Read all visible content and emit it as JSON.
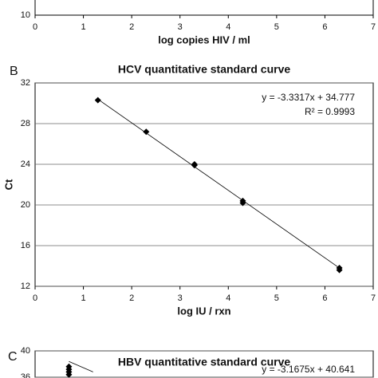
{
  "chart_data": [
    {
      "type": "scatter",
      "panel": null,
      "x_label": "log copies HIV / ml",
      "xlim": [
        0,
        7
      ],
      "xticks": [
        0,
        1,
        2,
        3,
        4,
        5,
        6,
        7
      ],
      "yticks": [
        10
      ]
    },
    {
      "type": "scatter",
      "panel": "B",
      "title": "HCV quantitative standard curve",
      "x_label": "log IU / rxn",
      "y_label": "Ct",
      "equation": "y = -3.3317x + 34.777",
      "r_squared": "R² = 0.9993",
      "xlim": [
        0,
        7
      ],
      "xticks": [
        0,
        1,
        2,
        3,
        4,
        5,
        6,
        7
      ],
      "ylim": [
        12,
        32
      ],
      "yticks": [
        12,
        16,
        20,
        24,
        28,
        32
      ],
      "grid": true,
      "series": [
        {
          "color": "#000000",
          "x": [
            1.3,
            2.3,
            3.3,
            3.3,
            4.3,
            4.3,
            6.3,
            6.3
          ],
          "values": [
            30.3,
            27.2,
            24.0,
            23.9,
            20.4,
            20.2,
            13.8,
            13.6
          ]
        },
        {
          "color": "#000000",
          "line": true,
          "x": [
            1.3,
            6.3
          ],
          "values": [
            30.4,
            13.8
          ]
        }
      ]
    },
    {
      "type": "scatter",
      "panel": "C",
      "title": "HBV quantitative standard curve",
      "equation": "y = -3.1675x + 40.641",
      "xlim": [
        0,
        7
      ],
      "ylim": [
        36,
        40
      ],
      "yticks": [
        40,
        36
      ],
      "grid": true,
      "series": [
        {
          "color": "#000000",
          "x": [
            0.7,
            0.7,
            0.7,
            0.7
          ],
          "values": [
            37.6,
            37.2,
            36.8,
            36.4
          ]
        },
        {
          "color": "#000000",
          "line": true,
          "x": [
            0.7,
            1.2
          ],
          "values": [
            38.4,
            36.8
          ]
        }
      ]
    }
  ]
}
